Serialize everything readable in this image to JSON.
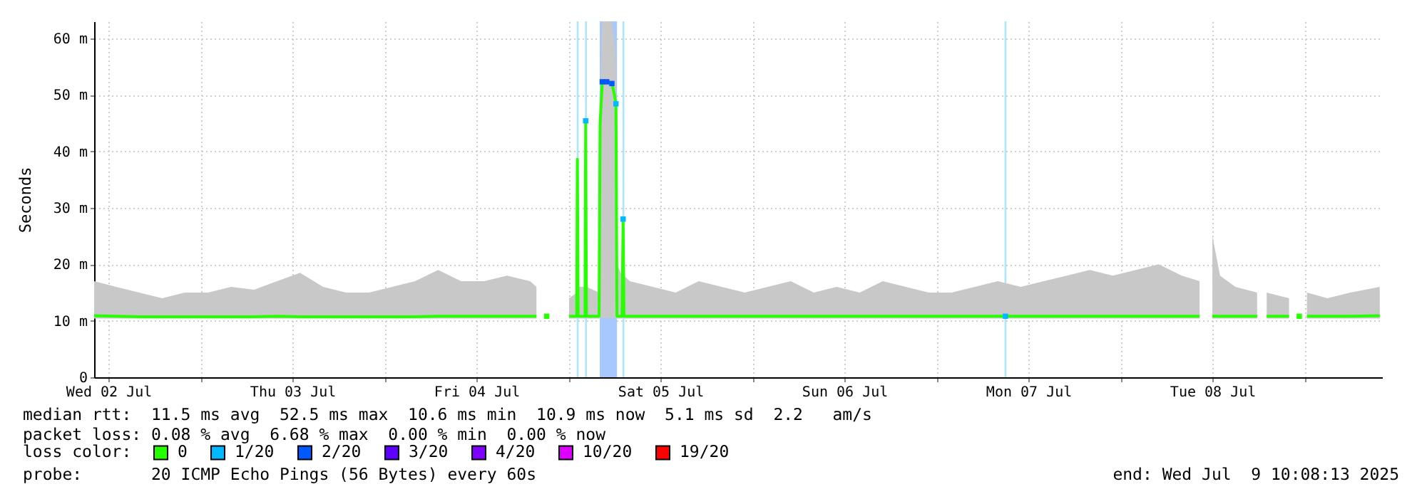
{
  "chart_data": {
    "type": "line",
    "ylabel": "Seconds",
    "legend_title": "loss color:",
    "legend": "bottom",
    "grid": true,
    "xlim": [
      "2025-07-02T10:08",
      "2025-07-09T10:08"
    ],
    "xticks": [
      {
        "value": "2025-07-02T12:00",
        "label": "Wed 02 Jul"
      },
      {
        "value": "2025-07-03T00:00",
        "label": null
      },
      {
        "value": "2025-07-03T12:00",
        "label": "Thu 03 Jul"
      },
      {
        "value": "2025-07-04T00:00",
        "label": null
      },
      {
        "value": "2025-07-04T12:00",
        "label": "Fri 04 Jul"
      },
      {
        "value": "2025-07-05T00:00",
        "label": null
      },
      {
        "value": "2025-07-05T12:00",
        "label": "Sat 05 Jul"
      },
      {
        "value": "2025-07-06T00:00",
        "label": null
      },
      {
        "value": "2025-07-06T12:00",
        "label": "Sun 06 Jul"
      },
      {
        "value": "2025-07-07T00:00",
        "label": null
      },
      {
        "value": "2025-07-07T12:00",
        "label": "Mon 07 Jul"
      },
      {
        "value": "2025-07-08T00:00",
        "label": null
      },
      {
        "value": "2025-07-08T12:00",
        "label": "Tue 08 Jul"
      },
      {
        "value": "2025-07-09T00:00",
        "label": null
      }
    ],
    "ylim": [
      0,
      63
    ],
    "yticks": [
      0,
      {
        "value": 10,
        "label": "10 m"
      },
      {
        "value": 20,
        "label": "20 m"
      },
      {
        "value": 30,
        "label": "30 m"
      },
      {
        "value": 40,
        "label": "40 m"
      },
      {
        "value": 50,
        "label": "50 m"
      },
      {
        "value": 60,
        "label": "60 m"
      }
    ],
    "bands": [
      {
        "axis": "x",
        "from": "2025-07-05T01:05",
        "to": "2025-07-05T01:20",
        "color": "#aee6fb"
      },
      {
        "axis": "x",
        "from": "2025-07-05T02:10",
        "to": "2025-07-05T02:25",
        "color": "#aee6fb"
      },
      {
        "axis": "x",
        "from": "2025-07-05T04:05",
        "to": "2025-07-05T06:20",
        "color": "#a6c8ff"
      },
      {
        "axis": "x",
        "from": "2025-07-05T07:03",
        "to": "2025-07-05T07:18",
        "color": "#aee6fb"
      },
      {
        "axis": "x",
        "from": "2025-07-07T08:53",
        "to": "2025-07-07T09:08",
        "color": "#aee6fb"
      }
    ],
    "series": [
      {
        "name": "0",
        "color": "#26ff00",
        "x": [
          "2025-07-02T10:08",
          "2025-07-02T13:00",
          "2025-07-02T16:00",
          "2025-07-02T19:00",
          "2025-07-02T22:00",
          "2025-07-03T01:00",
          "2025-07-03T04:00",
          "2025-07-03T07:00",
          "2025-07-03T10:00",
          "2025-07-03T13:00",
          "2025-07-03T16:00",
          "2025-07-03T19:00",
          "2025-07-03T22:00",
          "2025-07-04T01:00",
          "2025-07-04T04:00",
          "2025-07-04T07:00",
          "2025-07-04T10:00",
          "2025-07-04T13:00",
          "2025-07-04T16:00",
          "2025-07-04T19:00",
          "2025-07-04T19:50",
          "2025-07-04T20:05",
          "2025-07-05T00:05",
          "2025-07-05T01:05",
          "2025-07-05T01:10",
          "2025-07-05T01:16",
          "2025-07-05T02:10",
          "2025-07-05T02:15",
          "2025-07-05T02:21",
          "2025-07-05T04:00",
          "2025-07-05T04:08",
          "2025-07-05T04:25",
          "2025-07-05T05:00",
          "2025-07-05T05:40",
          "2025-07-05T06:00",
          "2025-07-05T06:12",
          "2025-07-05T06:20",
          "2025-07-05T07:00",
          "2025-07-05T07:08",
          "2025-07-05T07:15",
          "2025-07-05T08:00",
          "2025-07-05T11:00",
          "2025-07-05T14:00",
          "2025-07-05T17:00",
          "2025-07-05T20:00",
          "2025-07-05T23:00",
          "2025-07-06T02:00",
          "2025-07-06T05:00",
          "2025-07-06T08:00",
          "2025-07-06T11:00",
          "2025-07-06T14:00",
          "2025-07-06T17:00",
          "2025-07-06T20:00",
          "2025-07-06T23:00",
          "2025-07-07T02:00",
          "2025-07-07T05:00",
          "2025-07-07T08:00",
          "2025-07-07T11:00",
          "2025-07-07T14:00",
          "2025-07-07T17:00",
          "2025-07-07T20:00",
          "2025-07-07T23:00",
          "2025-07-08T02:00",
          "2025-07-08T05:00",
          "2025-07-08T08:00",
          "2025-07-08T10:20",
          "2025-07-08T11:00",
          "2025-07-08T12:00",
          "2025-07-08T13:00",
          "2025-07-08T15:00",
          "2025-07-08T17:50",
          "2025-07-08T18:30",
          "2025-07-08T19:05",
          "2025-07-08T22:00",
          "2025-07-08T22:20",
          "2025-07-09T00:20",
          "2025-07-09T03:00",
          "2025-07-09T06:00",
          "2025-07-09T09:50"
        ],
        "values": [
          10.9,
          10.8,
          10.7,
          10.7,
          10.7,
          10.7,
          10.7,
          10.7,
          10.8,
          10.7,
          10.7,
          10.7,
          10.7,
          10.7,
          10.7,
          10.8,
          10.8,
          10.8,
          10.8,
          10.8,
          10.8,
          null,
          10.8,
          10.8,
          38.6,
          10.8,
          10.8,
          45.4,
          10.8,
          10.8,
          45,
          52.3,
          52.3,
          52,
          50,
          48.4,
          10.8,
          10.8,
          28,
          10.8,
          10.8,
          10.8,
          10.8,
          10.8,
          10.8,
          10.8,
          10.8,
          10.8,
          10.8,
          10.8,
          10.8,
          10.8,
          10.8,
          10.8,
          10.8,
          10.8,
          10.8,
          10.8,
          10.8,
          10.8,
          10.8,
          10.8,
          10.8,
          10.8,
          10.8,
          10.8,
          null,
          10.8,
          10.8,
          10.8,
          10.8,
          null,
          10.8,
          10.8,
          null,
          10.8,
          10.8,
          10.8,
          10.9
        ],
        "lower": [
          10.4,
          10.4,
          10.4,
          10.4,
          10.4,
          10.4,
          10.4,
          10.4,
          10.4,
          10.4,
          10.4,
          10.4,
          10.4,
          10.4,
          10.4,
          10.4,
          10.4,
          10.4,
          10.4,
          10.4,
          10.4,
          null,
          10.4,
          10.4,
          10.5,
          10.4,
          10.4,
          10.5,
          10.4,
          10.4,
          10.5,
          10.5,
          10.5,
          10.5,
          10.5,
          10.5,
          10.4,
          10.4,
          10.5,
          10.4,
          10.4,
          10.4,
          10.4,
          10.4,
          10.4,
          10.4,
          10.4,
          10.4,
          10.4,
          10.4,
          10.4,
          10.4,
          10.4,
          10.4,
          10.4,
          10.4,
          10.4,
          10.4,
          10.4,
          10.4,
          10.4,
          10.4,
          10.4,
          10.4,
          10.4,
          10.4,
          null,
          10.4,
          10.4,
          10.4,
          10.4,
          null,
          10.4,
          10.4,
          null,
          10.4,
          10.4,
          10.4,
          10.4
        ],
        "upper": [
          17,
          16,
          15,
          14,
          15,
          15,
          16,
          15.5,
          17,
          18.5,
          16,
          15,
          15,
          16,
          17,
          19,
          17,
          17,
          18,
          17,
          16,
          null,
          14,
          15,
          40,
          16,
          16,
          48,
          16,
          15,
          47,
          63,
          63,
          63,
          60,
          56,
          20,
          18,
          30,
          18,
          17,
          16,
          15,
          17,
          16,
          15,
          16,
          17,
          15,
          16,
          15,
          17,
          16,
          15,
          15,
          16,
          17,
          16,
          17,
          18,
          19,
          18,
          19,
          20,
          18,
          17,
          null,
          25,
          18,
          16,
          15,
          null,
          15,
          14,
          null,
          15,
          14,
          15,
          16
        ]
      },
      {
        "color": "#26ff00",
        "type": "scatter",
        "x": [
          "2025-07-04T21:10",
          "2025-07-08T23:20"
        ],
        "values": [
          10.8,
          10.8
        ]
      },
      {
        "name": "1/20",
        "color": "#00b8ff",
        "type": "scatter",
        "x": [
          "2025-07-05T02:15",
          "2025-07-05T06:12",
          "2025-07-05T07:08",
          "2025-07-07T09:00"
        ],
        "values": [
          45.4,
          48.4,
          28,
          10.8
        ]
      },
      {
        "name": "2/20",
        "color": "#0059ff",
        "type": "scatter",
        "x": [
          "2025-07-05T04:25",
          "2025-07-05T05:00",
          "2025-07-05T05:40"
        ],
        "values": [
          52.3,
          52.3,
          52
        ]
      },
      {
        "name": "3/20",
        "color": "#5e00ff",
        "type": "scatter"
      },
      {
        "name": "4/20",
        "color": "#7e00ff",
        "type": "scatter"
      },
      {
        "name": "10/20",
        "color": "#dd00ff",
        "type": "scatter"
      },
      {
        "name": "19/20",
        "color": "#ff0000",
        "type": "scatter"
      }
    ],
    "annotations": [
      "median rtt:  11.5 ms avg  52.5 ms max  10.6 ms min  10.9 ms now  5.1 ms sd  2.2   am/s",
      "packet loss: 0.08 % avg  6.68 % max  0.00 % min  0.00 % now",
      "probe:       20 ICMP Echo Pings (56 Bytes) every 60s",
      "end: Wed Jul  9 10:08:13 2025"
    ]
  }
}
